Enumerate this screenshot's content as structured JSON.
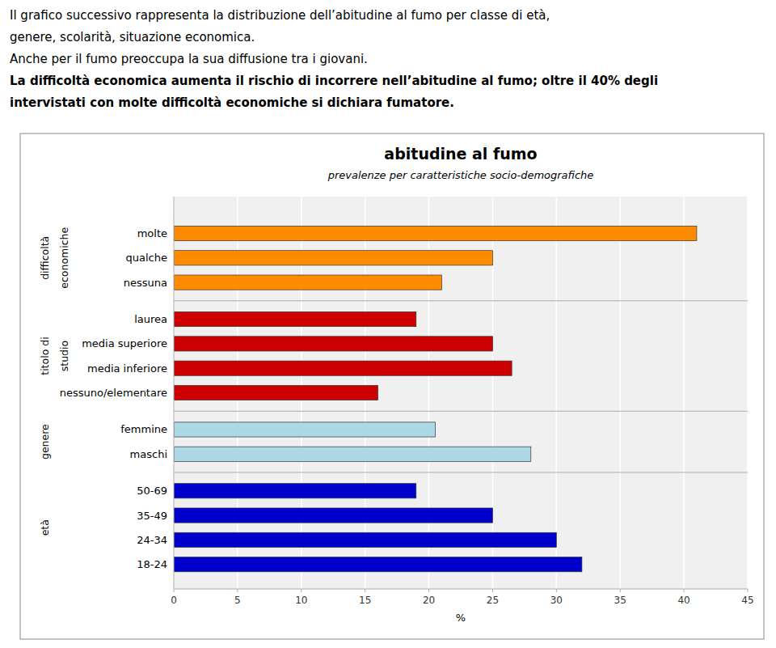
{
  "header": [
    "Il grafico successivo rappresenta la distribuzione dell’abitudine al fumo per classe di età,",
    "genere, scolarità, situazione economica.",
    "Anche per il fumo preoccupa la sua diffusione tra i giovani."
  ],
  "header_emphasis": [
    "La difficoltà economica aumenta il rischio di incorrere nell’abitudine al fumo; oltre il 40% degli",
    "intervistati con molte difficoltà economiche si dichiara fumatore."
  ],
  "chart_data": {
    "type": "bar",
    "orientation": "horizontal",
    "title": "abitudine al fumo",
    "subtitle": "prevalenze per caratteristiche socio-demografiche",
    "xlabel": "%",
    "xlim": [
      0,
      45
    ],
    "xticks": [
      0,
      5,
      10,
      15,
      20,
      25,
      30,
      35,
      40,
      45
    ],
    "grid": true,
    "groups": [
      {
        "name": [
          "difficoltà",
          "economiche"
        ],
        "color": "#FF8C00",
        "categories": [
          "molte",
          "qualche",
          "nessuna"
        ],
        "values": [
          41.0,
          25.0,
          21.0
        ]
      },
      {
        "name": [
          "titolo di",
          "studio"
        ],
        "color": "#CC0000",
        "categories": [
          "laurea",
          "media superiore",
          "media inferiore",
          "nessuno/elementare"
        ],
        "values": [
          19.0,
          25.0,
          26.5,
          16.0
        ]
      },
      {
        "name": [
          "genere"
        ],
        "color": "#ADD8E6",
        "categories": [
          "femmine",
          "maschi"
        ],
        "values": [
          20.5,
          28.0
        ]
      },
      {
        "name": [
          "età"
        ],
        "color": "#0000CC",
        "categories": [
          "50-69",
          "35-49",
          "24-34",
          "18-24"
        ],
        "values": [
          19.0,
          25.0,
          30.0,
          32.0
        ]
      }
    ]
  }
}
